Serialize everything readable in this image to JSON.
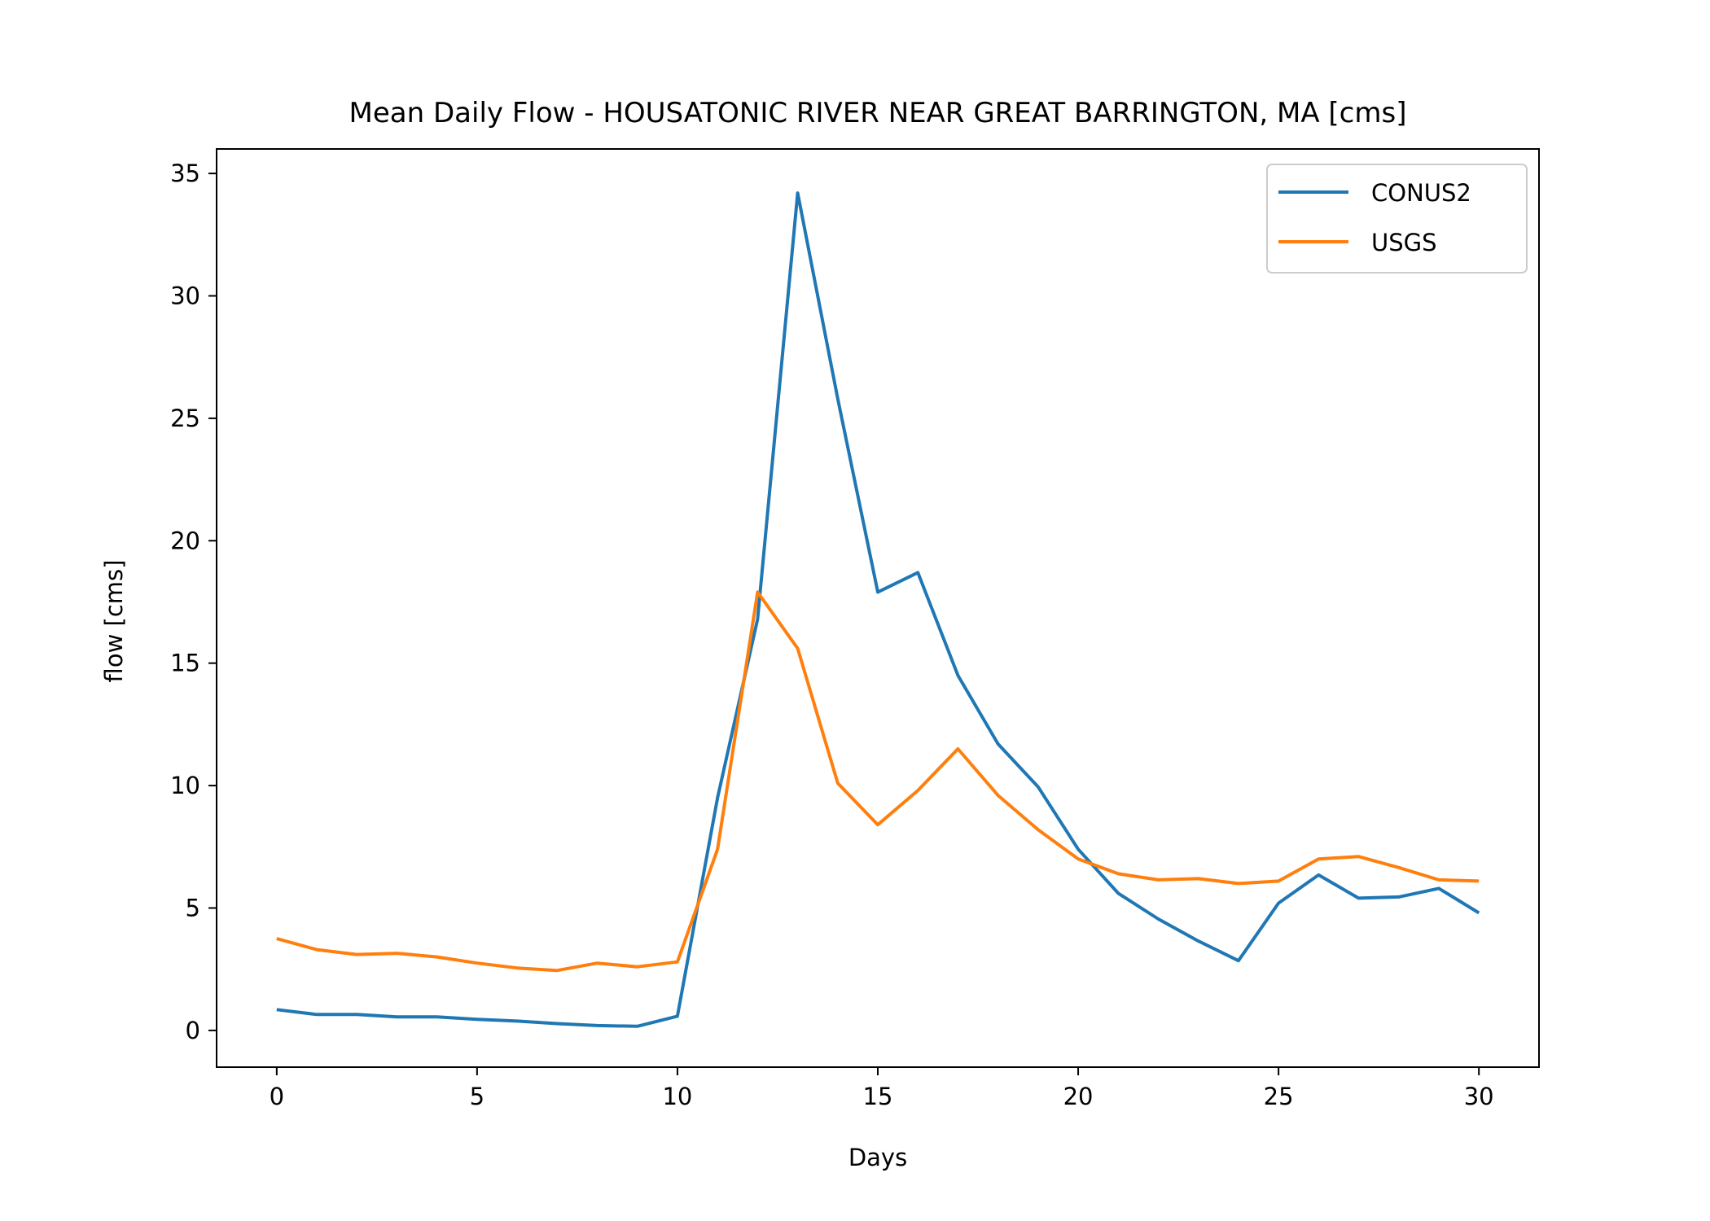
{
  "chart_data": {
    "type": "line",
    "title": "Mean Daily Flow - HOUSATONIC RIVER NEAR GREAT BARRINGTON, MA [cms]",
    "xlabel": "Days",
    "ylabel": "flow [cms]",
    "xlim": [
      -1.5,
      31.5
    ],
    "ylim": [
      -1.5,
      36
    ],
    "xticks": [
      0,
      5,
      10,
      15,
      20,
      25,
      30
    ],
    "yticks": [
      0,
      5,
      10,
      15,
      20,
      25,
      30,
      35
    ],
    "grid": false,
    "legend_position": "top-right",
    "x": [
      0,
      1,
      2,
      3,
      4,
      5,
      6,
      7,
      8,
      9,
      10,
      11,
      12,
      13,
      14,
      15,
      16,
      17,
      18,
      19,
      20,
      21,
      22,
      23,
      24,
      25,
      26,
      27,
      28,
      29,
      30
    ],
    "series": [
      {
        "name": "CONUS2",
        "color": "#1f77b4",
        "values": [
          0.85,
          0.65,
          0.65,
          0.55,
          0.55,
          0.45,
          0.38,
          0.28,
          0.2,
          0.17,
          0.58,
          9.5,
          16.8,
          34.2,
          25.8,
          17.9,
          18.7,
          14.5,
          11.7,
          9.95,
          7.4,
          5.6,
          4.55,
          3.65,
          2.85,
          5.2,
          6.35,
          5.4,
          5.45,
          5.8,
          4.8
        ]
      },
      {
        "name": "USGS",
        "color": "#ff7f0e",
        "values": [
          3.75,
          3.3,
          3.1,
          3.15,
          3.0,
          2.75,
          2.55,
          2.45,
          2.75,
          2.6,
          2.8,
          7.4,
          17.9,
          15.6,
          10.1,
          8.4,
          9.8,
          11.5,
          9.6,
          8.2,
          7.0,
          6.4,
          6.15,
          6.2,
          6.0,
          6.1,
          7.0,
          7.1,
          6.65,
          6.15,
          6.1
        ]
      }
    ]
  }
}
